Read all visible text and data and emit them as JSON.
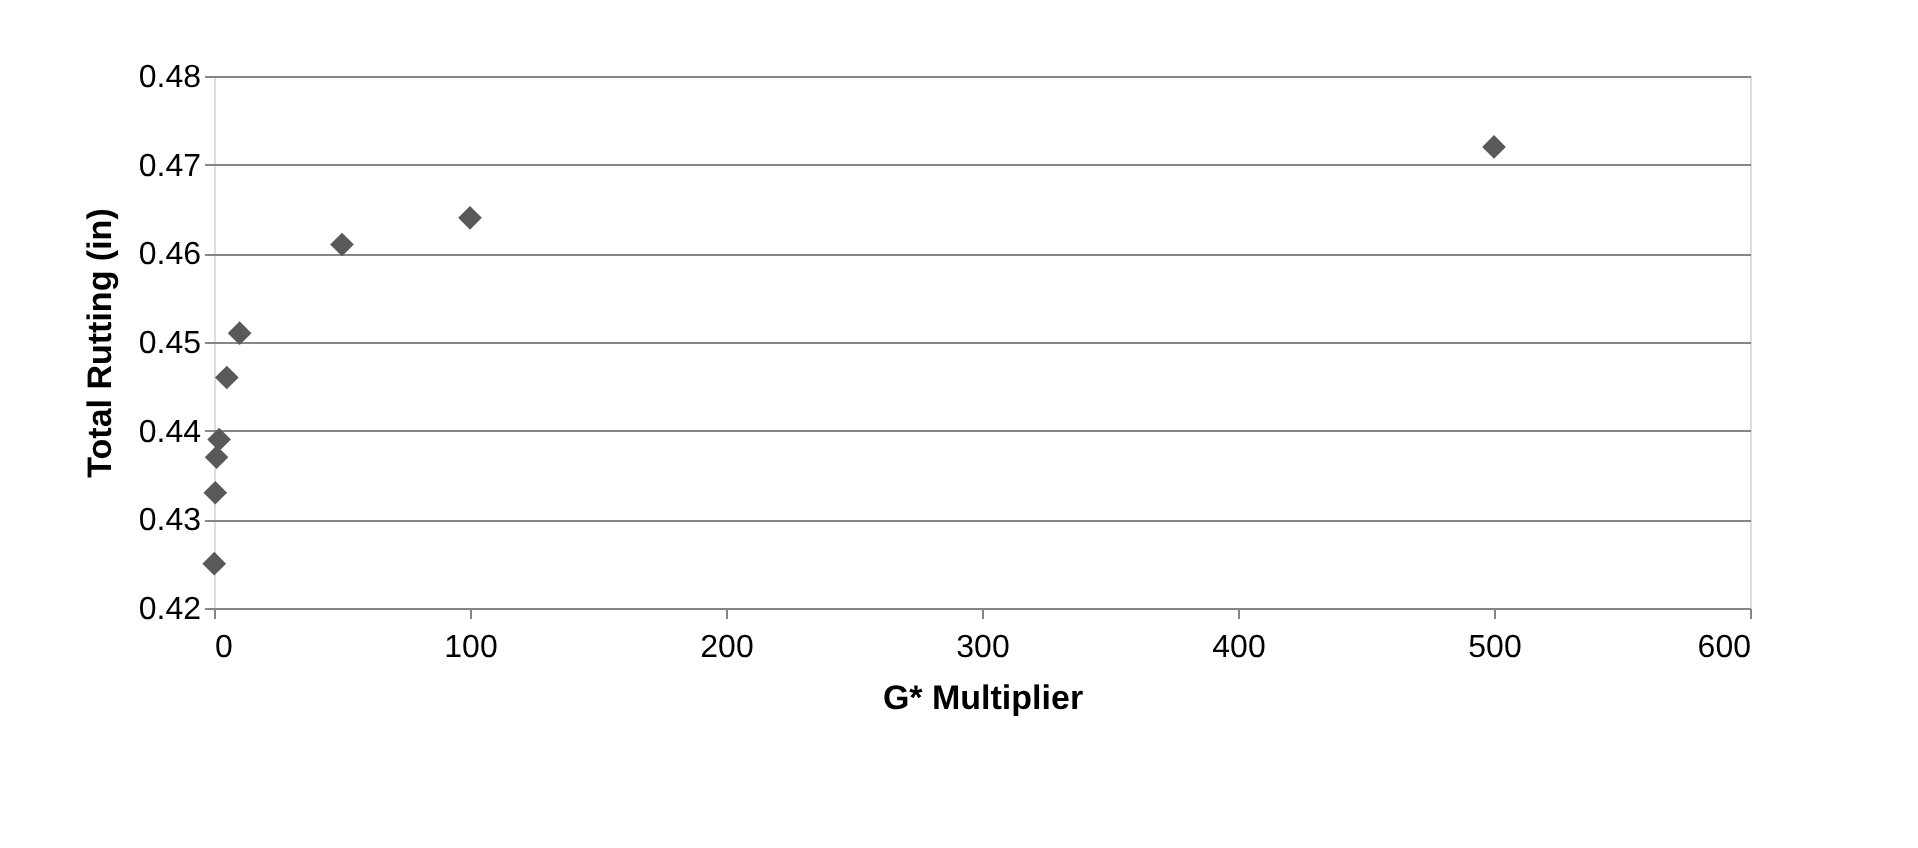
{
  "chart_data": {
    "type": "scatter",
    "xlabel": "G* Multiplier",
    "ylabel": "Total Rutting (in)",
    "x": [
      0.1,
      0.5,
      1,
      2,
      5,
      10,
      50,
      100,
      500
    ],
    "series": [
      {
        "color": "#595959",
        "values": [
          0.425,
          0.433,
          0.437,
          0.439,
          0.446,
          0.451,
          0.461,
          0.464,
          0.472
        ]
      }
    ],
    "xlim": [
      0,
      600
    ],
    "xticks": [
      0,
      100,
      200,
      300,
      400,
      500,
      600
    ],
    "ylim": [
      0.42,
      0.48
    ],
    "yticks": [
      0.42,
      0.43,
      0.44,
      0.45,
      0.46,
      0.47,
      0.48
    ],
    "grid": "y",
    "marker": "diamond",
    "legend": false
  }
}
